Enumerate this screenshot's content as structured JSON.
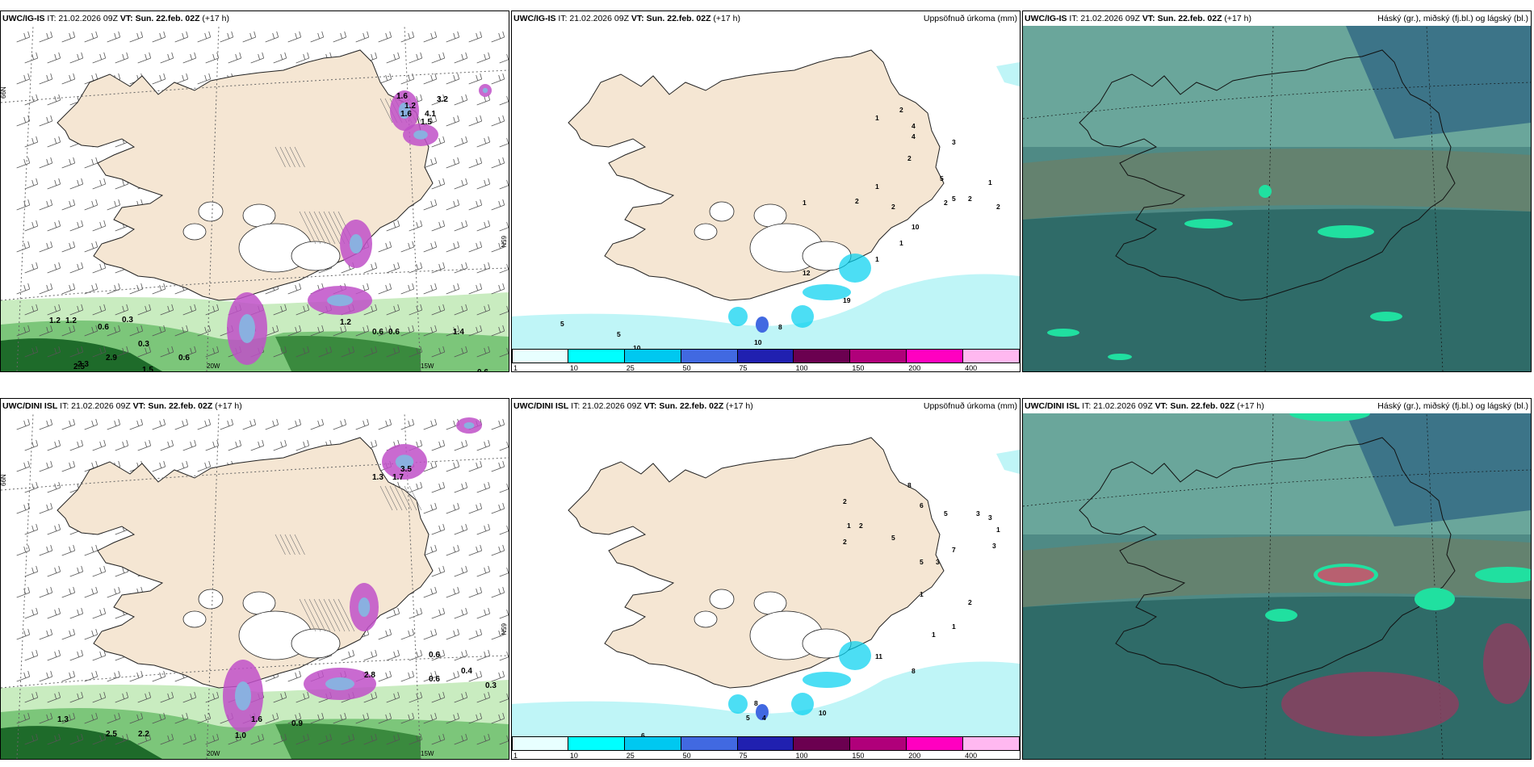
{
  "titles": {
    "p1": {
      "model": "UWC/IG-IS",
      "it": " IT: 21.02.2026 09Z ",
      "vt": "VT: Sun. 22.feb. 02Z",
      "lead": " (+17 h)"
    },
    "p2": {
      "model": "UWC/IG-IS",
      "it": " IT: 21.02.2026 09Z ",
      "vt": "VT: Sun. 22.feb. 02Z",
      "lead": " (+17 h)",
      "right": "Uppsöfnuð úrkoma (mm)"
    },
    "p3": {
      "model": "UWC/IG-IS",
      "it": " IT: 21.02.2026 09Z ",
      "vt": "VT: Sun. 22.feb. 02Z",
      "lead": " (+17 h)",
      "right": "Háský (gr.), miðský (fj.bl.) og lágský (bl.)"
    },
    "p4": {
      "model": "UWC/DINI ISL",
      "it": " IT: 21.02.2026 09Z ",
      "vt": "VT: Sun. 22.feb. 02Z",
      "lead": " (+17 h)"
    },
    "p5": {
      "model": "UWC/DINI ISL",
      "it": " IT: 21.02.2026 09Z ",
      "vt": "VT: Sun. 22.feb. 02Z",
      "lead": " (+17 h)",
      "right": "Uppsöfnuð úrkoma (mm)"
    },
    "p6": {
      "model": "UWC/DINI ISL",
      "it": " IT: 21.02.2026 09Z ",
      "vt": "VT: Sun. 22.feb. 02Z",
      "lead": " (+17 h)",
      "right": "Háský (gr.), miðský (fj.bl.) og lágský (bl.)"
    }
  },
  "precip_legend": {
    "labels": [
      "1",
      "10",
      "25",
      "50",
      "75",
      "100",
      "150",
      "200",
      "400"
    ],
    "colors": [
      "#e8ffff",
      "#00ffff",
      "#00c8f0",
      "#4169e1",
      "#2020b0",
      "#6b0050",
      "#b0007a",
      "#ff00c0",
      "#ffb8f0"
    ]
  },
  "grid_labels": {
    "lat_top": "66N",
    "lat_mid": "65N",
    "lon_left": "20W",
    "lon_right": "15W"
  },
  "p1_values": [
    "1.2",
    "1.2",
    "0.6",
    "0.3",
    "0.3",
    "2.3",
    "2.9",
    "2.5",
    "0.6",
    "1.5",
    "1.2",
    "0.6",
    "0.6",
    "1.4",
    "0.6",
    "1.6",
    "1.2",
    "1.6",
    "4.1",
    "1.5",
    "3.2"
  ],
  "p4_values": [
    "1.3",
    "2.5",
    "2.2",
    "0.6",
    "1.0",
    "0.9",
    "1.6",
    "2.8",
    "0.6",
    "0.4",
    "0.3",
    "4.0",
    "3.5",
    "1.3",
    "1.7"
  ],
  "p2_values": [
    "5",
    "5",
    "10",
    "8",
    "10",
    "8",
    "19",
    "12",
    "1",
    "2",
    "4",
    "4",
    "3",
    "2",
    "1",
    "2",
    "2",
    "5",
    "2",
    "1",
    "10",
    "1",
    "1",
    "5",
    "2",
    "1",
    "2"
  ],
  "p5_values": [
    "9",
    "6",
    "6",
    "9",
    "4",
    "8",
    "5",
    "10",
    "11",
    "8",
    "2",
    "1",
    "2",
    "2",
    "5",
    "8",
    "6",
    "5",
    "3",
    "3",
    "7",
    "3",
    "1",
    "3",
    "5",
    "1",
    "2",
    "1",
    "1"
  ],
  "colors": {
    "land": "#f5e6d3",
    "sea_precip": "#bff5f7",
    "cloud_dark": "#2f6b68",
    "cloud_mid": "#4f8a85",
    "cloud_light": "#6aa69b",
    "green_light": "#c9ecc0",
    "green_dark": "#1e6b2a",
    "purple": "#c050c8"
  }
}
